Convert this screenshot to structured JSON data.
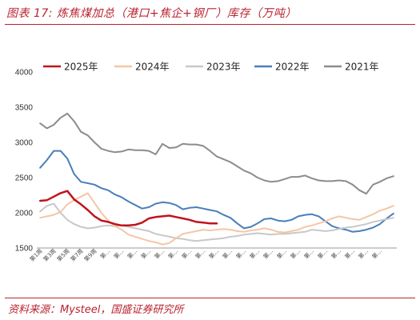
{
  "figure": {
    "title": "图表 17:  炼焦煤加总（港口+焦企+钢厂）库存（万吨）",
    "source": "资料来源：Mysteel，国盛证券研究所",
    "accent_color": "#b9232f"
  },
  "chart_data": {
    "type": "line",
    "title": "",
    "xlabel": "",
    "ylabel": "",
    "ylim": [
      1500,
      4000
    ],
    "yticks": [
      "1500",
      "2000",
      "2500",
      "3000",
      "3500",
      "4000"
    ],
    "xticks": [
      "第1周",
      "第3周",
      "第5周",
      "第7周",
      "第9周",
      "第…",
      "第…",
      "第…",
      "第…",
      "第…",
      "第…",
      "第…",
      "第…",
      "第…",
      "第…",
      "第…",
      "第…",
      "第…",
      "第…",
      "第…",
      "第…",
      "第…",
      "第…",
      "第…",
      "第…",
      "第…"
    ],
    "week_count": 53,
    "grid": false,
    "legend_position": "top",
    "series": [
      {
        "name": "2025年",
        "color": "#c0141c",
        "width": 2.5,
        "values": [
          2170,
          2180,
          2230,
          2280,
          2310,
          2190,
          2120,
          2040,
          1950,
          1890,
          1870,
          1840,
          1820,
          1820,
          1830,
          1860,
          1920,
          1940,
          1950,
          1960,
          1940,
          1920,
          1900,
          1870,
          1860,
          1850,
          1850
        ]
      },
      {
        "name": "2024年",
        "color": "#f5c6a5",
        "width": 2,
        "values": [
          1930,
          1950,
          1970,
          2010,
          2120,
          2180,
          2230,
          2280,
          2140,
          2000,
          1890,
          1810,
          1760,
          1690,
          1660,
          1630,
          1600,
          1580,
          1550,
          1570,
          1640,
          1700,
          1720,
          1740,
          1760,
          1750,
          1760,
          1770,
          1760,
          1740,
          1730,
          1750,
          1760,
          1780,
          1760,
          1730,
          1720,
          1740,
          1760,
          1800,
          1820,
          1850,
          1880,
          1920,
          1950,
          1930,
          1910,
          1900,
          1940,
          1980,
          2030,
          2060,
          2100
        ]
      },
      {
        "name": "2023年",
        "color": "#c8c8c8",
        "width": 2,
        "values": [
          2020,
          2100,
          2130,
          2000,
          1900,
          1840,
          1800,
          1780,
          1790,
          1810,
          1820,
          1810,
          1820,
          1800,
          1780,
          1760,
          1740,
          1700,
          1680,
          1660,
          1640,
          1630,
          1610,
          1600,
          1610,
          1620,
          1630,
          1640,
          1660,
          1670,
          1690,
          1700,
          1710,
          1700,
          1690,
          1700,
          1700,
          1710,
          1720,
          1730,
          1760,
          1750,
          1740,
          1750,
          1770,
          1790,
          1800,
          1820,
          1840,
          1870,
          1890,
          1910,
          1930
        ]
      },
      {
        "name": "2022年",
        "color": "#4a7ebb",
        "width": 2,
        "values": [
          2640,
          2750,
          2880,
          2880,
          2770,
          2550,
          2440,
          2420,
          2400,
          2350,
          2320,
          2260,
          2220,
          2160,
          2110,
          2060,
          2080,
          2130,
          2150,
          2140,
          2110,
          2050,
          2070,
          2080,
          2060,
          2040,
          2020,
          1970,
          1930,
          1850,
          1780,
          1800,
          1850,
          1910,
          1920,
          1890,
          1880,
          1900,
          1950,
          1970,
          1980,
          1950,
          1880,
          1810,
          1780,
          1760,
          1730,
          1740,
          1760,
          1790,
          1840,
          1920,
          1990
        ]
      },
      {
        "name": "2021年",
        "color": "#8c8c8c",
        "width": 2,
        "values": [
          3270,
          3200,
          3250,
          3350,
          3410,
          3300,
          3150,
          3100,
          3000,
          2910,
          2880,
          2860,
          2870,
          2900,
          2890,
          2890,
          2880,
          2830,
          2980,
          2920,
          2930,
          2980,
          2970,
          2970,
          2950,
          2880,
          2800,
          2760,
          2720,
          2660,
          2600,
          2560,
          2500,
          2460,
          2440,
          2450,
          2480,
          2510,
          2510,
          2530,
          2490,
          2460,
          2450,
          2450,
          2460,
          2450,
          2400,
          2320,
          2270,
          2400,
          2440,
          2490,
          2520
        ]
      }
    ]
  }
}
